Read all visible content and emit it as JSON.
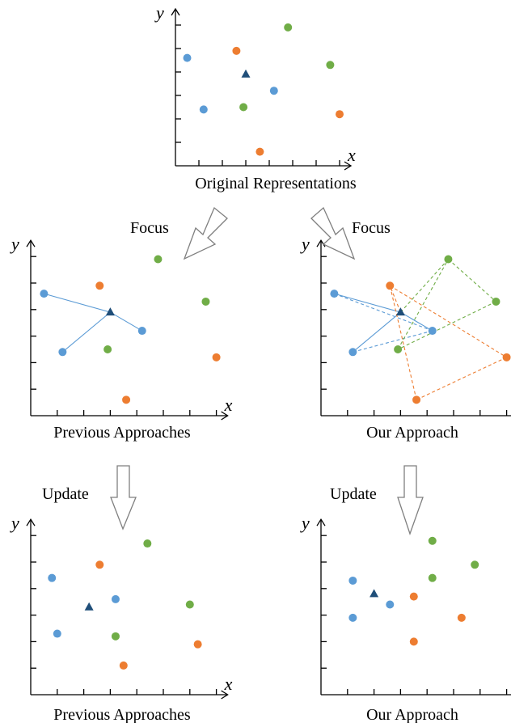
{
  "colors": {
    "blue": "#5B9BD5",
    "orange": "#ED7D31",
    "green": "#70AD47",
    "anchor": "#1F4E79",
    "arrow_outline": "#7F7F7F"
  },
  "axis_labels": {
    "x": "x",
    "y": "y"
  },
  "arrows": {
    "focus_left": "Focus",
    "focus_right": "Focus",
    "update_left": "Update",
    "update_right": "Update"
  },
  "panels": [
    {
      "id": "original",
      "caption": "Original Representations",
      "points": [
        {
          "c": "blue",
          "x": 0.5,
          "y": 3.6
        },
        {
          "c": "blue",
          "x": 1.2,
          "y": 1.4
        },
        {
          "c": "blue",
          "x": 4.2,
          "y": 2.2
        },
        {
          "c": "orange",
          "x": 2.6,
          "y": 3.9
        },
        {
          "c": "orange",
          "x": 3.6,
          "y": -0.4
        },
        {
          "c": "orange",
          "x": 7.0,
          "y": 1.2
        },
        {
          "c": "green",
          "x": 2.9,
          "y": 1.5
        },
        {
          "c": "green",
          "x": 4.8,
          "y": 4.9
        },
        {
          "c": "green",
          "x": 6.6,
          "y": 3.3
        }
      ],
      "anchor": {
        "x": 3.0,
        "y": 2.9
      },
      "lines": []
    },
    {
      "id": "previous-focus",
      "caption": "Previous Approaches",
      "points": [
        {
          "c": "blue",
          "x": 0.5,
          "y": 3.6
        },
        {
          "c": "blue",
          "x": 1.2,
          "y": 1.4
        },
        {
          "c": "blue",
          "x": 4.2,
          "y": 2.2
        },
        {
          "c": "orange",
          "x": 2.6,
          "y": 3.9
        },
        {
          "c": "orange",
          "x": 3.6,
          "y": -0.4
        },
        {
          "c": "orange",
          "x": 7.0,
          "y": 1.2
        },
        {
          "c": "green",
          "x": 2.9,
          "y": 1.5
        },
        {
          "c": "green",
          "x": 4.8,
          "y": 4.9
        },
        {
          "c": "green",
          "x": 6.6,
          "y": 3.3
        }
      ],
      "anchor": {
        "x": 3.0,
        "y": 2.9
      },
      "lines": [
        {
          "c": "blue",
          "dash": false,
          "to": [
            0.5,
            3.6
          ]
        },
        {
          "c": "blue",
          "dash": false,
          "to": [
            1.2,
            1.4
          ]
        },
        {
          "c": "blue",
          "dash": false,
          "to": [
            4.2,
            2.2
          ]
        }
      ]
    },
    {
      "id": "our-focus",
      "caption": "Our Approach",
      "points": [
        {
          "c": "blue",
          "x": 0.5,
          "y": 3.6
        },
        {
          "c": "blue",
          "x": 1.2,
          "y": 1.4
        },
        {
          "c": "blue",
          "x": 4.2,
          "y": 2.2
        },
        {
          "c": "orange",
          "x": 2.6,
          "y": 3.9
        },
        {
          "c": "orange",
          "x": 3.6,
          "y": -0.4
        },
        {
          "c": "orange",
          "x": 7.0,
          "y": 1.2
        },
        {
          "c": "green",
          "x": 2.9,
          "y": 1.5
        },
        {
          "c": "green",
          "x": 4.8,
          "y": 4.9
        },
        {
          "c": "green",
          "x": 6.6,
          "y": 3.3
        }
      ],
      "anchor": {
        "x": 3.0,
        "y": 2.9
      },
      "lines": [
        {
          "c": "blue",
          "dash": false,
          "to": [
            0.5,
            3.6
          ]
        },
        {
          "c": "blue",
          "dash": false,
          "to": [
            1.2,
            1.4
          ]
        },
        {
          "c": "blue",
          "dash": false,
          "to": [
            4.2,
            2.2
          ]
        },
        {
          "c": "blue",
          "dash": true,
          "from": [
            0.5,
            3.6
          ],
          "to": [
            4.2,
            2.2
          ]
        },
        {
          "c": "blue",
          "dash": true,
          "from": [
            1.2,
            1.4
          ],
          "to": [
            4.2,
            2.2
          ]
        },
        {
          "c": "orange",
          "dash": true,
          "to": [
            2.6,
            3.9
          ]
        },
        {
          "c": "orange",
          "dash": true,
          "from": [
            2.6,
            3.9
          ],
          "to": [
            7.0,
            1.2
          ]
        },
        {
          "c": "orange",
          "dash": true,
          "from": [
            7.0,
            1.2
          ],
          "to": [
            3.6,
            -0.4
          ]
        },
        {
          "c": "orange",
          "dash": true,
          "from": [
            3.6,
            -0.4
          ],
          "to": [
            2.6,
            3.9
          ]
        },
        {
          "c": "green",
          "dash": true,
          "to": [
            4.8,
            4.9
          ]
        },
        {
          "c": "green",
          "dash": true,
          "from": [
            4.8,
            4.9
          ],
          "to": [
            6.6,
            3.3
          ]
        },
        {
          "c": "green",
          "dash": true,
          "from": [
            6.6,
            3.3
          ],
          "to": [
            2.9,
            1.5
          ]
        },
        {
          "c": "green",
          "dash": true,
          "from": [
            2.9,
            1.5
          ],
          "to": [
            4.8,
            4.9
          ]
        }
      ]
    },
    {
      "id": "previous-update",
      "caption": "Previous Approaches",
      "points": [
        {
          "c": "blue",
          "x": 0.8,
          "y": 3.4
        },
        {
          "c": "blue",
          "x": 1.0,
          "y": 1.3
        },
        {
          "c": "blue",
          "x": 3.2,
          "y": 2.6
        },
        {
          "c": "orange",
          "x": 2.6,
          "y": 3.9
        },
        {
          "c": "orange",
          "x": 3.5,
          "y": 0.1
        },
        {
          "c": "orange",
          "x": 6.3,
          "y": 0.9
        },
        {
          "c": "green",
          "x": 3.2,
          "y": 1.2
        },
        {
          "c": "green",
          "x": 4.4,
          "y": 4.7
        },
        {
          "c": "green",
          "x": 6.0,
          "y": 2.4
        }
      ],
      "anchor": {
        "x": 2.2,
        "y": 2.3
      },
      "lines": []
    },
    {
      "id": "our-update",
      "caption": "Our Approach",
      "points": [
        {
          "c": "blue",
          "x": 1.2,
          "y": 3.3
        },
        {
          "c": "blue",
          "x": 1.2,
          "y": 1.9
        },
        {
          "c": "blue",
          "x": 2.6,
          "y": 2.4
        },
        {
          "c": "orange",
          "x": 3.5,
          "y": 2.7
        },
        {
          "c": "orange",
          "x": 3.5,
          "y": 1.0
        },
        {
          "c": "orange",
          "x": 5.3,
          "y": 1.9
        },
        {
          "c": "green",
          "x": 4.2,
          "y": 4.8
        },
        {
          "c": "green",
          "x": 4.2,
          "y": 3.4
        },
        {
          "c": "green",
          "x": 5.8,
          "y": 3.9
        }
      ],
      "anchor": {
        "x": 2.0,
        "y": 2.8
      },
      "lines": []
    }
  ]
}
